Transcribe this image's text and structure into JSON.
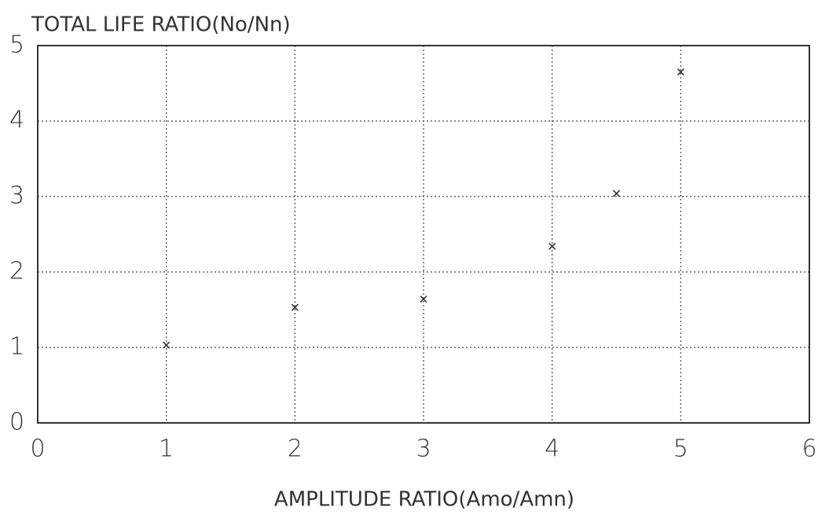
{
  "chart_data": {
    "type": "scatter",
    "title": "TOTAL LIFE RATIO(No/Nn)",
    "x_label": "AMPLITUDE  RATIO(Amo/Amn)",
    "x": [
      1,
      2,
      3,
      4,
      4.5,
      5
    ],
    "values": [
      1.03,
      1.53,
      1.64,
      2.34,
      3.04,
      4.65
    ],
    "color": "#333333",
    "xlim": [
      0,
      6
    ],
    "ylim": [
      0,
      5
    ],
    "xticks": [
      0,
      1,
      2,
      3,
      4,
      5,
      6
    ],
    "yticks": [
      0,
      1,
      2,
      3,
      4,
      5
    ],
    "grid": true
  }
}
